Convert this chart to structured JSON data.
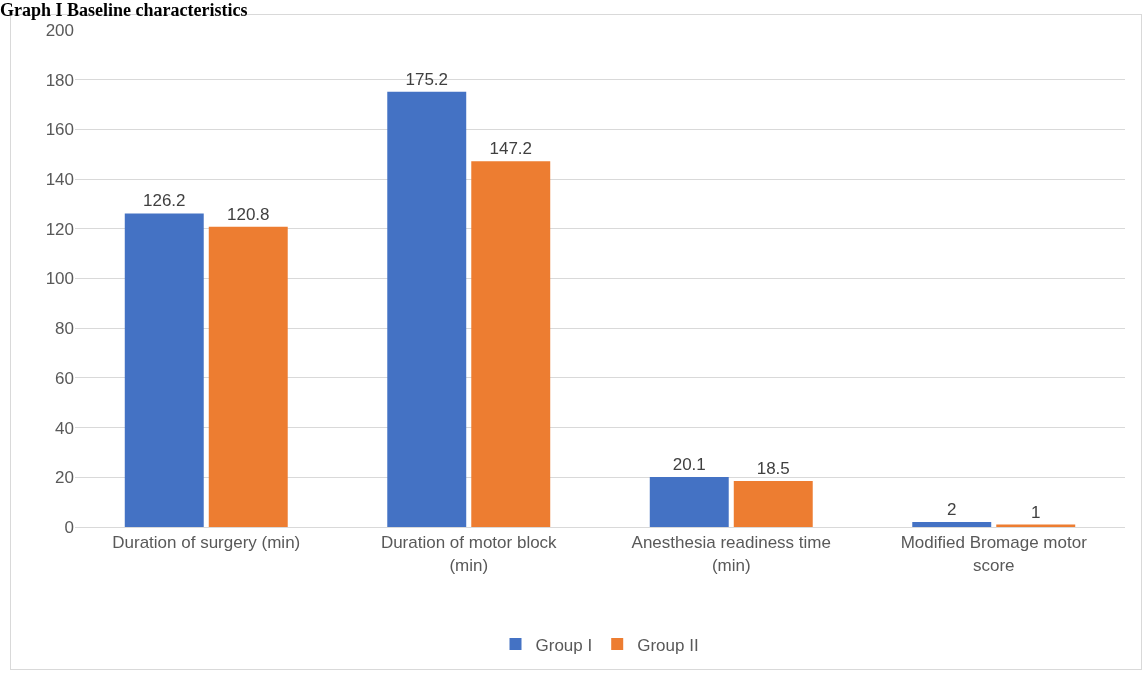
{
  "chart_data": {
    "type": "bar",
    "title": "Graph I Baseline characteristics",
    "categories": [
      "Duration of surgery (min)",
      "Duration of motor block (min)",
      "Anesthesia readiness time (min)",
      "Modified Bromage motor score"
    ],
    "series": [
      {
        "name": "Group I",
        "color": "#4472c4",
        "values": [
          126.2,
          175.2,
          20.1,
          2
        ]
      },
      {
        "name": "Group II",
        "color": "#ed7d31",
        "values": [
          120.8,
          147.2,
          18.5,
          1
        ]
      }
    ],
    "ylim": [
      0,
      200
    ],
    "yticks": [
      0,
      20,
      40,
      60,
      80,
      100,
      120,
      140,
      160,
      180,
      200
    ],
    "grid": "y",
    "legend": "bottom",
    "data_labels": true
  }
}
